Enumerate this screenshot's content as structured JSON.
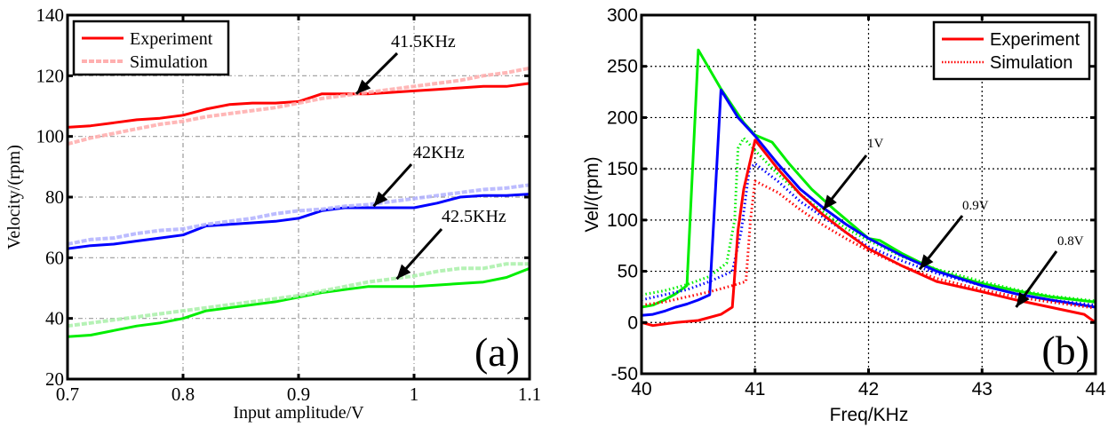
{
  "chart_data": [
    {
      "id": "a",
      "type": "line",
      "panel_label": "(a)",
      "title": "",
      "xlabel": "Input amplitude/V",
      "ylabel": "Velocity/(rpm)",
      "xlim": [
        0.7,
        1.1
      ],
      "ylim": [
        20,
        140
      ],
      "xticks": [
        0.7,
        0.8,
        0.9,
        1,
        1.1
      ],
      "xtick_labels": [
        "0.7",
        "0.8",
        "0.9",
        "1",
        "1.1"
      ],
      "yticks": [
        20,
        40,
        60,
        80,
        100,
        120,
        140
      ],
      "ytick_labels": [
        "20",
        "40",
        "60",
        "80",
        "100",
        "120",
        "140"
      ],
      "grid": true,
      "grid_style": "dash-dot",
      "legend": {
        "placement": "top-left",
        "entries": [
          {
            "label": "Experiment",
            "style": "solid",
            "color": "#ff0000"
          },
          {
            "label": "Simulation",
            "style": "dashed-light",
            "color": "#ffb0b0"
          }
        ]
      },
      "annotations": [
        {
          "text": "41.5KHz",
          "target": [
            0.95,
            114
          ]
        },
        {
          "text": "42KHz",
          "target": [
            0.965,
            77
          ]
        },
        {
          "text": "42.5KHz",
          "target": [
            0.985,
            53
          ]
        }
      ],
      "x": [
        0.7,
        0.72,
        0.74,
        0.76,
        0.78,
        0.8,
        0.82,
        0.84,
        0.86,
        0.88,
        0.9,
        0.92,
        0.94,
        0.96,
        0.98,
        1.0,
        1.02,
        1.04,
        1.06,
        1.08,
        1.1
      ],
      "series": [
        {
          "name": "41.5KHz Experiment",
          "group": "41.5KHz",
          "kind": "experiment",
          "color": "#ff0000",
          "values": [
            103,
            103.5,
            104.5,
            105.5,
            106,
            107,
            109,
            110.5,
            111,
            111,
            111.5,
            114,
            114,
            114,
            114.5,
            115,
            115.5,
            116,
            116.5,
            116.5,
            117.5
          ]
        },
        {
          "name": "41.5KHz Simulation",
          "group": "41.5KHz",
          "kind": "simulation",
          "color": "#ffaaaa",
          "values": [
            97.5,
            99.5,
            101,
            102.5,
            104,
            105,
            106.5,
            107.5,
            108.5,
            109.5,
            111,
            112.5,
            113.5,
            114.5,
            115.5,
            116.5,
            117.5,
            118.5,
            120,
            121,
            122.5
          ]
        },
        {
          "name": "42KHz Experiment",
          "group": "42KHz",
          "kind": "experiment",
          "color": "#0000ff",
          "values": [
            63,
            64,
            64.5,
            65.5,
            66.5,
            67.5,
            70.5,
            71,
            71.5,
            72,
            73,
            75.5,
            76.5,
            76.5,
            76.5,
            76.5,
            78,
            80,
            80.5,
            80.5,
            81
          ]
        },
        {
          "name": "42KHz Simulation",
          "group": "42KHz",
          "kind": "simulation",
          "color": "#b0b0ff",
          "values": [
            64.5,
            66,
            66.5,
            68,
            69,
            69.5,
            71,
            72,
            73,
            74.5,
            75.5,
            76,
            77,
            77.5,
            78.5,
            79.5,
            80.5,
            81.5,
            82.5,
            83,
            84
          ]
        },
        {
          "name": "42.5KHz Experiment",
          "group": "42.5KHz",
          "kind": "experiment",
          "color": "#00ee00",
          "values": [
            34,
            34.5,
            36,
            37.5,
            38.5,
            40,
            42.5,
            43.5,
            44.5,
            45.5,
            47,
            48.5,
            49.5,
            50.5,
            50.5,
            50.5,
            51,
            51.5,
            52,
            53.5,
            56.5
          ]
        },
        {
          "name": "42.5KHz Simulation",
          "group": "42.5KHz",
          "kind": "simulation",
          "color": "#a8f0a8",
          "values": [
            37.5,
            38.5,
            39.5,
            40.5,
            41.5,
            42.5,
            43.5,
            44.5,
            45.5,
            46.5,
            47.5,
            49,
            50.5,
            52,
            53,
            54,
            55.5,
            56.5,
            56.5,
            58,
            58
          ]
        }
      ]
    },
    {
      "id": "b",
      "type": "line",
      "panel_label": "(b)",
      "title": "",
      "xlabel": "Freq/KHz",
      "ylabel": "Vel/(rpm)",
      "xlim": [
        40,
        44
      ],
      "ylim": [
        -50,
        300
      ],
      "xticks": [
        40,
        41,
        42,
        43,
        44
      ],
      "xtick_labels": [
        "40",
        "41",
        "42",
        "43",
        "44"
      ],
      "yticks": [
        -50,
        0,
        50,
        100,
        150,
        200,
        250,
        300
      ],
      "ytick_labels": [
        "-50",
        "0",
        "50",
        "100",
        "150",
        "200",
        "250",
        "300"
      ],
      "grid": true,
      "grid_style": "dotted",
      "legend": {
        "placement": "top-right",
        "entries": [
          {
            "label": "Experiment",
            "style": "solid",
            "color": "#ff0000"
          },
          {
            "label": "Simulation",
            "style": "dotted",
            "color": "#ff0000"
          }
        ]
      },
      "annotations": [
        {
          "text": "1V",
          "target": [
            41.6,
            110
          ]
        },
        {
          "text": "0.9V",
          "target": [
            42.45,
            52
          ]
        },
        {
          "text": "0.8V",
          "target": [
            43.3,
            15
          ]
        }
      ],
      "series": [
        {
          "name": "1V Experiment",
          "kind": "experiment",
          "color": "#00ee00",
          "x": [
            40,
            40.1,
            40.2,
            40.3,
            40.4,
            40.5,
            40.7,
            40.9,
            41.0,
            41.15,
            41.3,
            41.5,
            41.7,
            42.0,
            42.1,
            42.3,
            42.5,
            42.7,
            43.0,
            43.3,
            43.6,
            44.0
          ],
          "y": [
            15,
            17,
            22,
            28,
            36,
            266,
            228,
            195,
            183,
            176,
            155,
            130,
            110,
            82,
            80,
            67,
            56,
            47,
            38,
            31,
            25,
            20
          ]
        },
        {
          "name": "1V Simulation",
          "kind": "simulation",
          "color": "#00ee00",
          "x": [
            40,
            40.2,
            40.4,
            40.6,
            40.75,
            40.82,
            40.85,
            40.9,
            41.0,
            41.2,
            41.4,
            41.6,
            41.8,
            42.0,
            42.3,
            42.6,
            43.0,
            43.3,
            43.6,
            44.0
          ],
          "y": [
            27,
            31,
            37,
            45,
            58,
            100,
            170,
            180,
            168,
            145,
            125,
            108,
            92,
            80,
            64,
            52,
            40,
            32,
            26,
            21
          ]
        },
        {
          "name": "0.9V Experiment",
          "kind": "experiment",
          "color": "#0000ff",
          "x": [
            40,
            40.1,
            40.2,
            40.3,
            40.4,
            40.5,
            40.6,
            40.7,
            40.85,
            41.0,
            41.2,
            41.4,
            41.6,
            41.8,
            42.0,
            42.3,
            42.6,
            43.0,
            43.3,
            43.6,
            44.0
          ],
          "y": [
            7,
            8,
            11,
            15,
            18,
            22,
            27,
            227,
            200,
            182,
            155,
            130,
            112,
            96,
            82,
            65,
            50,
            36,
            28,
            22,
            15
          ]
        },
        {
          "name": "0.9V Simulation",
          "kind": "simulation",
          "color": "#0000ff",
          "x": [
            40,
            40.2,
            40.4,
            40.6,
            40.8,
            40.88,
            40.95,
            41.0,
            41.2,
            41.4,
            41.6,
            41.8,
            42.0,
            42.3,
            42.6,
            43.0,
            43.3,
            43.6,
            44.0
          ],
          "y": [
            22,
            27,
            32,
            40,
            50,
            90,
            150,
            155,
            138,
            118,
            103,
            88,
            74,
            60,
            48,
            36,
            28,
            22,
            17
          ]
        },
        {
          "name": "0.8V Experiment",
          "kind": "experiment",
          "color": "#ff0000",
          "x": [
            40,
            40.1,
            40.3,
            40.5,
            40.7,
            40.8,
            40.85,
            40.9,
            41.0,
            41.2,
            41.4,
            41.6,
            41.8,
            42.0,
            42.3,
            42.6,
            43.0,
            43.3,
            43.6,
            43.9,
            44.0
          ],
          "y": [
            0,
            -3,
            0,
            2,
            8,
            15,
            90,
            130,
            178,
            150,
            125,
            105,
            88,
            72,
            55,
            40,
            30,
            22,
            15,
            8,
            0
          ]
        },
        {
          "name": "0.8V Simulation",
          "kind": "simulation",
          "color": "#ff0000",
          "x": [
            40,
            40.2,
            40.4,
            40.6,
            40.8,
            40.92,
            40.96,
            41.0,
            41.2,
            41.4,
            41.6,
            41.8,
            42.0,
            42.3,
            42.6,
            43.0,
            43.3,
            43.6,
            44.0
          ],
          "y": [
            17,
            20,
            25,
            30,
            36,
            40,
            100,
            138,
            127,
            110,
            95,
            82,
            70,
            55,
            43,
            32,
            25,
            20,
            14
          ]
        }
      ]
    }
  ]
}
